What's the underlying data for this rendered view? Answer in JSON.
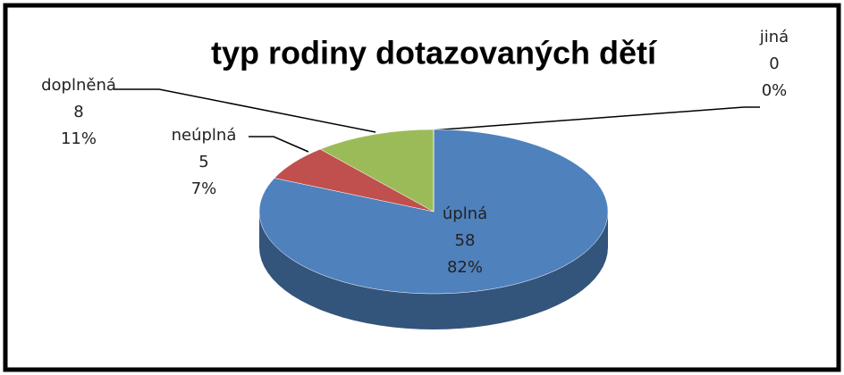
{
  "chart_data": {
    "type": "pie3d",
    "title": "typ rodiny dotazovaných dětí",
    "categories": [
      "úplná",
      "neúplná",
      "doplněná",
      "jiná"
    ],
    "values": [
      58,
      5,
      8,
      0
    ],
    "percent_labels": [
      "82%",
      "7%",
      "11%",
      "0%"
    ],
    "colors": [
      "#4f81bd",
      "#c0504d",
      "#9bbb59",
      "#8064a2"
    ]
  }
}
